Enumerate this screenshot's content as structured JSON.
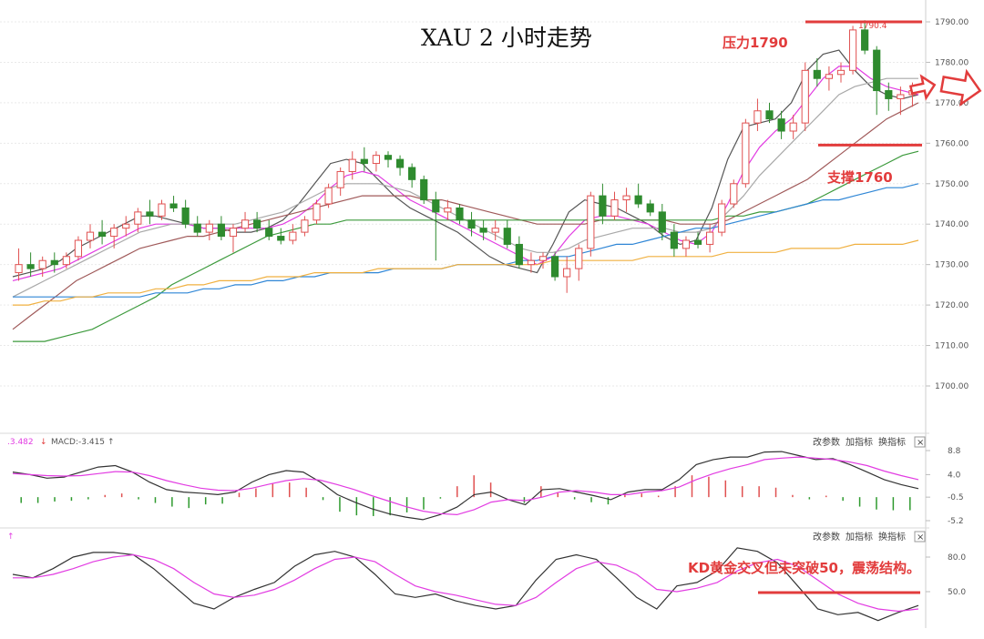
{
  "title": "XAU 2 小时走势",
  "chart_data": [
    {
      "type": "candlestick",
      "series_name": "XAU",
      "timeframe": "2H",
      "price_ticks": [
        "1790.00",
        "1780.00",
        "1770.00",
        "1760.00",
        "1750.00",
        "1740.00",
        "1730.00",
        "1720.00",
        "1710.00",
        "1700.00"
      ],
      "ylim": [
        1690,
        1792
      ],
      "grid": true,
      "legend": "none",
      "high_label": "1790.4",
      "ohlc": [
        [
          1728,
          1734,
          1726,
          1730
        ],
        [
          1730,
          1733,
          1727,
          1729
        ],
        [
          1729,
          1732,
          1727,
          1731
        ],
        [
          1731,
          1733,
          1728,
          1730
        ],
        [
          1730,
          1733,
          1729,
          1732
        ],
        [
          1732,
          1737,
          1731,
          1736
        ],
        [
          1736,
          1740,
          1734,
          1738
        ],
        [
          1738,
          1741,
          1735,
          1737
        ],
        [
          1737,
          1740,
          1734,
          1739
        ],
        [
          1739,
          1742,
          1737,
          1740
        ],
        [
          1740,
          1744,
          1738,
          1743
        ],
        [
          1743,
          1746,
          1740,
          1742
        ],
        [
          1742,
          1746,
          1741,
          1745
        ],
        [
          1745,
          1747,
          1743,
          1744
        ],
        [
          1744,
          1746,
          1739,
          1740
        ],
        [
          1740,
          1742,
          1737,
          1738
        ],
        [
          1738,
          1741,
          1736,
          1740
        ],
        [
          1740,
          1742,
          1736,
          1737
        ],
        [
          1737,
          1740,
          1733,
          1739
        ],
        [
          1739,
          1743,
          1738,
          1741
        ],
        [
          1741,
          1743,
          1738,
          1739
        ],
        [
          1739,
          1741,
          1736,
          1737
        ],
        [
          1737,
          1739,
          1735,
          1736
        ],
        [
          1736,
          1740,
          1735,
          1738
        ],
        [
          1738,
          1742,
          1737,
          1741
        ],
        [
          1741,
          1746,
          1740,
          1745
        ],
        [
          1745,
          1750,
          1744,
          1749
        ],
        [
          1749,
          1754,
          1747,
          1753
        ],
        [
          1753,
          1758,
          1751,
          1756
        ],
        [
          1756,
          1759,
          1753,
          1755
        ],
        [
          1755,
          1758,
          1753,
          1757
        ],
        [
          1757,
          1758,
          1754,
          1756
        ],
        [
          1756,
          1757,
          1752,
          1754
        ],
        [
          1754,
          1755,
          1749,
          1751
        ],
        [
          1751,
          1752,
          1745,
          1746
        ],
        [
          1746,
          1748,
          1731,
          1743
        ],
        [
          1743,
          1746,
          1741,
          1744
        ],
        [
          1744,
          1745,
          1740,
          1741
        ],
        [
          1741,
          1743,
          1737,
          1739
        ],
        [
          1739,
          1741,
          1736,
          1738
        ],
        [
          1738,
          1741,
          1736,
          1739
        ],
        [
          1739,
          1741,
          1734,
          1735
        ],
        [
          1735,
          1737,
          1729,
          1730
        ],
        [
          1730,
          1733,
          1728,
          1731
        ],
        [
          1731,
          1733,
          1729,
          1732
        ],
        [
          1732,
          1733,
          1726,
          1727
        ],
        [
          1727,
          1732,
          1723,
          1729
        ],
        [
          1729,
          1735,
          1726,
          1734
        ],
        [
          1734,
          1748,
          1732,
          1747
        ],
        [
          1747,
          1750,
          1740,
          1742
        ],
        [
          1742,
          1748,
          1741,
          1746
        ],
        [
          1746,
          1749,
          1743,
          1747
        ],
        [
          1747,
          1750,
          1744,
          1745
        ],
        [
          1745,
          1746,
          1742,
          1743
        ],
        [
          1743,
          1745,
          1736,
          1738
        ],
        [
          1738,
          1740,
          1732,
          1734
        ],
        [
          1734,
          1737,
          1732,
          1736
        ],
        [
          1736,
          1738,
          1734,
          1735
        ],
        [
          1735,
          1740,
          1733,
          1738
        ],
        [
          1738,
          1746,
          1737,
          1745
        ],
        [
          1745,
          1751,
          1744,
          1750
        ],
        [
          1750,
          1766,
          1749,
          1765
        ],
        [
          1765,
          1771,
          1763,
          1768
        ],
        [
          1768,
          1770,
          1765,
          1766
        ],
        [
          1766,
          1768,
          1761,
          1763
        ],
        [
          1763,
          1767,
          1761,
          1765
        ],
        [
          1765,
          1780,
          1763,
          1778
        ],
        [
          1778,
          1781,
          1774,
          1776
        ],
        [
          1776,
          1779,
          1773,
          1777
        ],
        [
          1777,
          1780,
          1775,
          1778
        ],
        [
          1778,
          1789,
          1777,
          1788
        ],
        [
          1788,
          1790.4,
          1782,
          1783
        ],
        [
          1783,
          1784,
          1767,
          1773
        ],
        [
          1773,
          1775,
          1768,
          1771
        ],
        [
          1771,
          1774,
          1767,
          1772
        ],
        [
          1772,
          1775,
          1769,
          1773
        ]
      ],
      "moving_averages": [
        {
          "color": "#555555",
          "values": [
            1727,
            1728,
            1729,
            1731,
            1734,
            1736,
            1738,
            1740,
            1742,
            1742,
            1741,
            1740,
            1739,
            1739,
            1738,
            1738,
            1739,
            1741,
            1745,
            1750,
            1755,
            1756,
            1755,
            1751,
            1747,
            1744,
            1742,
            1740,
            1738,
            1735,
            1732,
            1730,
            1729,
            1728,
            1735,
            1743,
            1746,
            1745,
            1744,
            1742,
            1740,
            1737,
            1735,
            1736,
            1744,
            1756,
            1764,
            1765,
            1766,
            1770,
            1778,
            1782,
            1783,
            1778,
            1774,
            1772,
            1771,
            1772
          ]
        },
        {
          "color": "#e23ce2",
          "values": [
            1726,
            1727,
            1728,
            1729,
            1731,
            1733,
            1735,
            1737,
            1739,
            1740,
            1740,
            1740,
            1739,
            1739,
            1739,
            1739,
            1739,
            1740,
            1742,
            1745,
            1749,
            1752,
            1753,
            1752,
            1749,
            1746,
            1744,
            1742,
            1740,
            1738,
            1736,
            1734,
            1732,
            1730,
            1732,
            1737,
            1741,
            1742,
            1742,
            1741,
            1740,
            1738,
            1736,
            1735,
            1738,
            1745,
            1753,
            1759,
            1763,
            1766,
            1771,
            1776,
            1779,
            1779,
            1776,
            1774,
            1773,
            1772
          ]
        },
        {
          "color": "#a8a8a8",
          "values": [
            1722,
            1724,
            1726,
            1728,
            1730,
            1732,
            1734,
            1736,
            1738,
            1739,
            1740,
            1740,
            1740,
            1740,
            1740,
            1741,
            1742,
            1743,
            1745,
            1747,
            1749,
            1750,
            1750,
            1750,
            1749,
            1748,
            1746,
            1744,
            1742,
            1740,
            1738,
            1736,
            1734,
            1733,
            1733,
            1734,
            1736,
            1737,
            1738,
            1739,
            1739,
            1739,
            1738,
            1738,
            1739,
            1743,
            1747,
            1752,
            1756,
            1760,
            1764,
            1768,
            1772,
            1774,
            1775,
            1776,
            1776,
            1776
          ]
        },
        {
          "color": "#a05a5a",
          "values": [
            1714,
            1717,
            1720,
            1723,
            1726,
            1728,
            1730,
            1732,
            1734,
            1735,
            1736,
            1737,
            1737,
            1738,
            1739,
            1740,
            1741,
            1742,
            1743,
            1744,
            1745,
            1746,
            1747,
            1747,
            1747,
            1747,
            1746,
            1746,
            1745,
            1744,
            1743,
            1742,
            1741,
            1740,
            1740,
            1740,
            1740,
            1741,
            1741,
            1741,
            1741,
            1741,
            1740,
            1740,
            1740,
            1741,
            1743,
            1745,
            1747,
            1749,
            1751,
            1754,
            1757,
            1760,
            1763,
            1766,
            1768,
            1770
          ]
        },
        {
          "color": "#3c9a3c",
          "values": [
            1711,
            1711,
            1711,
            1712,
            1713,
            1714,
            1716,
            1718,
            1720,
            1722,
            1725,
            1727,
            1729,
            1731,
            1733,
            1735,
            1737,
            1738,
            1739,
            1740,
            1740,
            1741,
            1741,
            1741,
            1741,
            1741,
            1741,
            1741,
            1741,
            1741,
            1741,
            1741,
            1741,
            1741,
            1741,
            1741,
            1741,
            1741,
            1741,
            1741,
            1741,
            1741,
            1741,
            1741,
            1741,
            1742,
            1742,
            1743,
            1743,
            1744,
            1745,
            1747,
            1749,
            1751,
            1753,
            1755,
            1757,
            1758
          ]
        },
        {
          "color": "#2f86d6",
          "values": [
            1722,
            1722,
            1722,
            1722,
            1722,
            1722,
            1722,
            1722,
            1722,
            1723,
            1723,
            1723,
            1724,
            1724,
            1725,
            1725,
            1726,
            1726,
            1727,
            1727,
            1728,
            1728,
            1728,
            1728,
            1729,
            1729,
            1729,
            1729,
            1730,
            1730,
            1730,
            1730,
            1731,
            1731,
            1732,
            1732,
            1733,
            1734,
            1735,
            1735,
            1736,
            1737,
            1738,
            1739,
            1739,
            1740,
            1741,
            1742,
            1743,
            1744,
            1745,
            1746,
            1746,
            1747,
            1748,
            1749,
            1749,
            1750
          ]
        },
        {
          "color": "#f0b040",
          "values": [
            1720,
            1720,
            1721,
            1721,
            1722,
            1722,
            1723,
            1723,
            1723,
            1724,
            1724,
            1725,
            1725,
            1726,
            1726,
            1726,
            1727,
            1727,
            1727,
            1728,
            1728,
            1728,
            1728,
            1729,
            1729,
            1729,
            1729,
            1729,
            1730,
            1730,
            1730,
            1730,
            1730,
            1730,
            1731,
            1731,
            1731,
            1731,
            1731,
            1731,
            1732,
            1732,
            1732,
            1732,
            1732,
            1733,
            1733,
            1733,
            1733,
            1734,
            1734,
            1734,
            1734,
            1735,
            1735,
            1735,
            1735,
            1736
          ]
        }
      ],
      "annotations": [
        {
          "text": "压力1790",
          "level": 1790
        },
        {
          "text": "支撑1760",
          "level": 1760
        }
      ]
    },
    {
      "type": "line",
      "indicator": "MACD",
      "header_left": ".3.482",
      "header_macd": "MACD:-3.415",
      "ticks": [
        "8.8",
        "4.0",
        "-0.5",
        "-5.2"
      ],
      "ylim": [
        -6,
        10
      ],
      "diff": [
        4.5,
        4.0,
        3.3,
        3.5,
        4.5,
        5.5,
        5.8,
        4.5,
        2.5,
        1.0,
        0.5,
        0.3,
        0.0,
        0.5,
        2.5,
        4.0,
        4.8,
        4.5,
        2.5,
        0.0,
        -1.5,
        -2.8,
        -3.8,
        -4.5,
        -5.0,
        -4.0,
        -2.5,
        0.0,
        0.5,
        -1.0,
        -2.0,
        1.0,
        1.2,
        0.5,
        -0.2,
        -1.0,
        0.5,
        1.0,
        1.0,
        3.0,
        6.0,
        7.0,
        7.5,
        7.5,
        8.5,
        8.6,
        7.8,
        7.0,
        7.2,
        6.0,
        4.5,
        3.0,
        2.0,
        1.2
      ],
      "dea": [
        4.2,
        4.0,
        3.8,
        3.7,
        3.8,
        4.2,
        4.6,
        4.5,
        3.8,
        2.8,
        2.0,
        1.3,
        0.9,
        0.8,
        1.3,
        2.1,
        2.8,
        3.2,
        2.9,
        2.0,
        1.0,
        -0.2,
        -1.3,
        -2.4,
        -3.3,
        -3.8,
        -4.0,
        -3.0,
        -1.5,
        -1.0,
        -1.2,
        -0.5,
        0.5,
        0.8,
        0.5,
        0.0,
        0.0,
        0.5,
        0.8,
        1.5,
        3.0,
        4.2,
        5.2,
        6.0,
        7.0,
        7.3,
        7.5,
        7.3,
        7.0,
        6.5,
        5.8,
        4.7,
        3.8,
        3.0
      ],
      "macd_bars": [
        -0.8,
        -0.8,
        -0.6,
        -0.5,
        -0.3,
        0.3,
        0.5,
        -0.3,
        -0.8,
        -1.3,
        -1.5,
        -1.0,
        -0.9,
        0.6,
        1.2,
        1.9,
        2.0,
        1.3,
        -0.4,
        -2.0,
        -2.5,
        -2.6,
        -2.5,
        -2.1,
        -1.7,
        -0.2,
        1.5,
        3.0,
        2.0,
        0.0,
        -0.8,
        1.5,
        0.7,
        -0.3,
        -0.7,
        -1.0,
        0.5,
        0.5,
        0.2,
        1.5,
        3.0,
        2.8,
        2.3,
        1.5,
        1.5,
        1.3,
        0.3,
        -0.3,
        0.2,
        -0.5,
        -1.3,
        -1.7,
        -1.8,
        -1.8
      ]
    },
    {
      "type": "line",
      "indicator": "KD",
      "header": "↑",
      "ticks": [
        "80.0",
        "50.0"
      ],
      "ylim": [
        20,
        95
      ],
      "k": [
        65,
        62,
        70,
        80,
        84,
        84,
        82,
        70,
        55,
        40,
        35,
        45,
        52,
        58,
        72,
        82,
        85,
        80,
        65,
        48,
        45,
        48,
        42,
        38,
        35,
        38,
        60,
        78,
        82,
        78,
        62,
        45,
        35,
        55,
        58,
        68,
        88,
        85,
        75,
        55,
        35,
        30,
        32,
        25,
        32,
        38
      ],
      "d": [
        62,
        62,
        65,
        70,
        76,
        80,
        82,
        78,
        70,
        58,
        48,
        45,
        47,
        52,
        60,
        70,
        78,
        80,
        76,
        65,
        55,
        50,
        47,
        43,
        39,
        38,
        45,
        58,
        70,
        76,
        73,
        65,
        52,
        50,
        53,
        58,
        68,
        75,
        78,
        72,
        60,
        48,
        40,
        35,
        33,
        35
      ],
      "annotation": "KD黄金交叉但未突破50，震荡结构。"
    }
  ],
  "toolbar": {
    "param_label": "改参数",
    "add_label": "加指标",
    "swap_label": "换指标",
    "close_label": "×"
  }
}
